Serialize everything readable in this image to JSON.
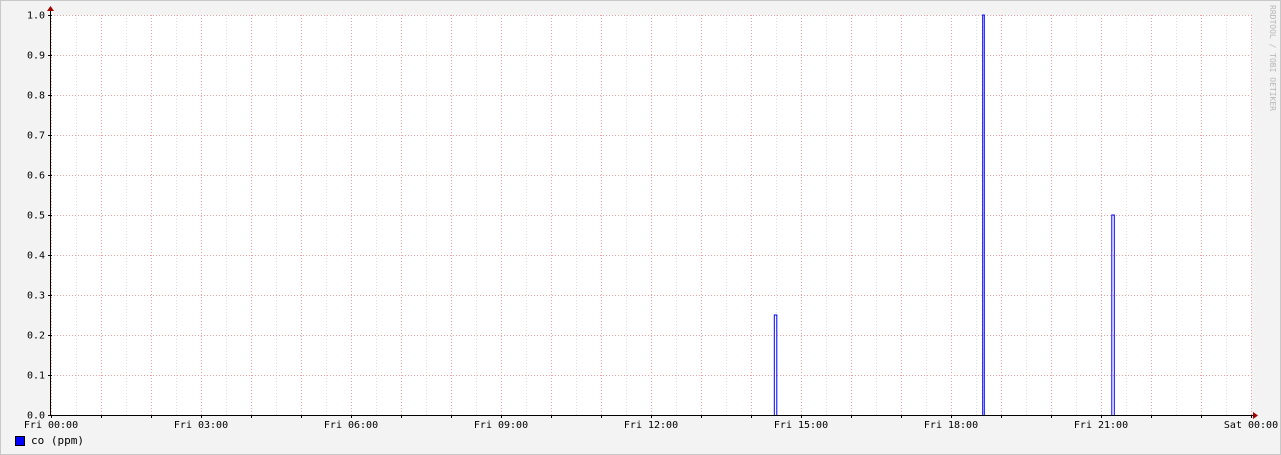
{
  "chart_data": {
    "type": "line",
    "title": "",
    "xlabel": "",
    "ylabel": "",
    "x_start": "Fri 00:00",
    "x_end": "Sat 00:00",
    "xlim_hours": [
      0,
      24
    ],
    "ylim": [
      0,
      1.0
    ],
    "x_tick_labels": [
      "Fri 00:00",
      "Fri 03:00",
      "Fri 06:00",
      "Fri 09:00",
      "Fri 12:00",
      "Fri 15:00",
      "Fri 18:00",
      "Fri 21:00",
      "Sat 00:00"
    ],
    "y_tick_labels": [
      "0.0",
      "0.1",
      "0.2",
      "0.3",
      "0.4",
      "0.5",
      "0.6",
      "0.7",
      "0.8",
      "0.9",
      "1.0"
    ],
    "grid": true,
    "legend_position": "bottom-left",
    "series": [
      {
        "name": "co (ppm)",
        "color": "#0000ff",
        "spikes": [
          {
            "start": "Fri 14:28",
            "end": "Fri 14:31",
            "value": 0.25
          },
          {
            "start": "Fri 18:38",
            "end": "Fri 18:40",
            "value": 1.0
          },
          {
            "start": "Fri 21:13",
            "end": "Fri 21:16",
            "value": 0.5
          }
        ]
      }
    ],
    "watermark": "RRDTOOL / TOBI OETIKER"
  }
}
